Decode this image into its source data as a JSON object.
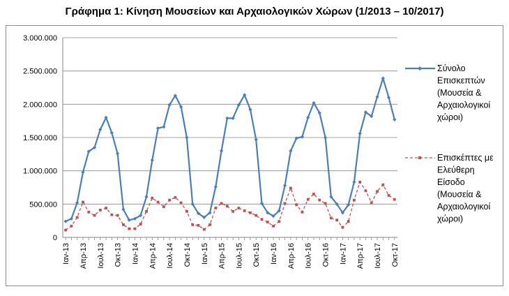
{
  "chart_data": {
    "type": "line",
    "title": "Γράφημα 1: Κίνηση Μουσείων και Αρχαιολογικών Χώρων (1/2013 – 10/2017)",
    "xlabel": "",
    "ylabel": "",
    "ylim": [
      0,
      3000000
    ],
    "yticks": [
      0,
      500000,
      1000000,
      1500000,
      2000000,
      2500000,
      3000000
    ],
    "ytick_labels": [
      "0",
      "500.000",
      "1.000.000",
      "1.500.000",
      "2.000.000",
      "2.500.000",
      "3.000.000"
    ],
    "grid": true,
    "legend_position": "right",
    "x": [
      "Ιαν-13",
      "Φεβ-13",
      "Μαρ-13",
      "Απρ-13",
      "Μαϊ-13",
      "Ιουν-13",
      "Ιουλ-13",
      "Αυγ-13",
      "Σεπ-13",
      "Οκτ-13",
      "Νοε-13",
      "Δεκ-13",
      "Ιαν-14",
      "Φεβ-14",
      "Μαρ-14",
      "Απρ-14",
      "Μαϊ-14",
      "Ιουν-14",
      "Ιουλ-14",
      "Αυγ-14",
      "Σεπ-14",
      "Οκτ-14",
      "Νοε-14",
      "Δεκ-14",
      "Ιαν-15",
      "Φεβ-15",
      "Μαρ-15",
      "Απρ-15",
      "Μαϊ-15",
      "Ιουν-15",
      "Ιουλ-15",
      "Αυγ-15",
      "Σεπ-15",
      "Οκτ-15",
      "Νοε-15",
      "Δεκ-15",
      "Ιαν-16",
      "Φεβ-16",
      "Μαρ-16",
      "Απρ-16",
      "Μαϊ-16",
      "Ιουν-16",
      "Ιουλ-16",
      "Αυγ-16",
      "Σεπ-16",
      "Οκτ-16",
      "Νοε-16",
      "Δεκ-16",
      "Ιαν-17",
      "Φεβ-17",
      "Μαρ-17",
      "Απρ-17",
      "Μαϊ-17",
      "Ιουν-17",
      "Ιουλ-17",
      "Αυγ-17",
      "Σεπ-17",
      "Οκτ-17"
    ],
    "x_tick_labels": [
      "Ιαν-13",
      "Απρ-13",
      "Ιουλ-13",
      "Οκτ-13",
      "Ιαν-14",
      "Απρ-14",
      "Ιουλ-14",
      "Οκτ-14",
      "Ιαν-15",
      "Απρ-15",
      "Ιουλ-15",
      "Οκτ-15",
      "Ιαν-16",
      "Απρ-16",
      "Ιουλ-16",
      "Οκτ-16",
      "Ιαν-17",
      "Απρ-17",
      "Ιουλ-17",
      "Οκτ-17"
    ],
    "x_tick_every": 3,
    "series": [
      {
        "name": "Σύνολο Επισκεπτών (Μουσεία & Αρχαιολογικοί χώροι)",
        "legend_lines": [
          "Σύνολο",
          "Επισκεπτών",
          "(Μουσεία &",
          "Αρχαιολογικοί",
          "χώροι)"
        ],
        "color": "#4a7ebb",
        "style": "solid",
        "marker": "diamond",
        "values": [
          240000,
          280000,
          520000,
          980000,
          1290000,
          1350000,
          1620000,
          1800000,
          1570000,
          1260000,
          420000,
          260000,
          280000,
          330000,
          610000,
          1160000,
          1640000,
          1660000,
          1990000,
          2130000,
          1960000,
          1500000,
          500000,
          360000,
          300000,
          370000,
          760000,
          1300000,
          1790000,
          1790000,
          1990000,
          2140000,
          1920000,
          1470000,
          510000,
          370000,
          320000,
          400000,
          780000,
          1300000,
          1490000,
          1510000,
          1800000,
          2020000,
          1870000,
          1500000,
          610000,
          500000,
          370000,
          490000,
          830000,
          1560000,
          1880000,
          1820000,
          2110000,
          2390000,
          2100000,
          1770000
        ]
      },
      {
        "name": "Επισκέπτες με Ελεύθερη Είσοδο (Μουσεία & Αρχαιολογικοί χώροι)",
        "legend_lines": [
          "Επισκέπτες με",
          "Ελεύθερη",
          "Είσοδο",
          "(Μουσεία &",
          "Αρχαιολογικοί",
          "χώροι)"
        ],
        "color": "#c0504d",
        "style": "dashed",
        "marker": "square",
        "values": [
          110000,
          170000,
          300000,
          530000,
          380000,
          330000,
          410000,
          440000,
          340000,
          330000,
          190000,
          130000,
          130000,
          200000,
          390000,
          590000,
          530000,
          460000,
          560000,
          600000,
          520000,
          390000,
          190000,
          180000,
          120000,
          190000,
          440000,
          510000,
          470000,
          390000,
          440000,
          400000,
          370000,
          330000,
          270000,
          230000,
          170000,
          240000,
          510000,
          740000,
          490000,
          380000,
          570000,
          650000,
          560000,
          510000,
          290000,
          260000,
          150000,
          240000,
          560000,
          830000,
          700000,
          520000,
          690000,
          790000,
          630000,
          570000
        ]
      }
    ]
  }
}
